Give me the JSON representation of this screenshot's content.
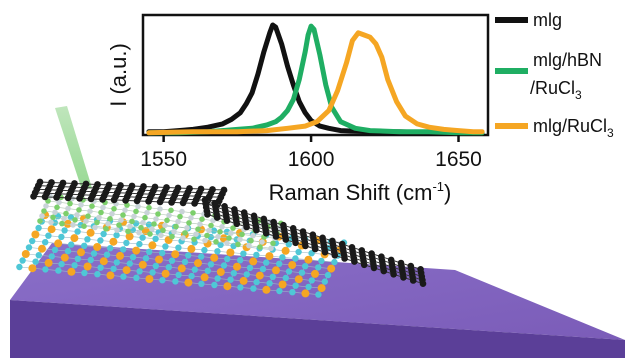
{
  "chart_data": {
    "type": "line",
    "title": "",
    "xlabel_main": "Raman Shift (cm",
    "xlabel_sup": "-1",
    "xlabel_end": ")",
    "ylabel": "I (a.u.)",
    "xlim": [
      1543,
      1660
    ],
    "ylim": [
      0,
      1.08
    ],
    "x_ticks": [
      1550,
      1600,
      1650
    ],
    "legend_position": "right",
    "series": [
      {
        "name_main": "mlg",
        "name_sub": "",
        "name_cont": "",
        "name_cont_sub": "",
        "color": "#111111",
        "x": [
          1545,
          1550,
          1555,
          1560,
          1565,
          1570,
          1573,
          1576,
          1578,
          1580,
          1582,
          1584,
          1586,
          1587,
          1588,
          1590,
          1592,
          1594,
          1596,
          1598,
          1600,
          1603,
          1606,
          1610,
          1620,
          1630,
          1640,
          1650,
          1658
        ],
        "y": [
          0.03,
          0.03,
          0.04,
          0.05,
          0.07,
          0.1,
          0.14,
          0.2,
          0.28,
          0.38,
          0.55,
          0.75,
          0.92,
          0.99,
          0.97,
          0.82,
          0.62,
          0.45,
          0.3,
          0.2,
          0.13,
          0.08,
          0.06,
          0.04,
          0.03,
          0.03,
          0.02,
          0.02,
          0.02
        ]
      },
      {
        "name_main": "mlg/hBN",
        "name_sub": "",
        "name_cont": "/RuCl",
        "name_cont_sub": "3",
        "color": "#1fae63",
        "x": [
          1545,
          1555,
          1565,
          1575,
          1580,
          1585,
          1588,
          1590,
          1592,
          1594,
          1596,
          1598,
          1599,
          1600,
          1601,
          1603,
          1605,
          1607,
          1610,
          1615,
          1620,
          1630,
          1640,
          1650,
          1658
        ],
        "y": [
          0.02,
          0.02,
          0.03,
          0.05,
          0.06,
          0.09,
          0.12,
          0.16,
          0.22,
          0.32,
          0.5,
          0.75,
          0.9,
          0.98,
          0.95,
          0.72,
          0.45,
          0.25,
          0.12,
          0.06,
          0.04,
          0.03,
          0.03,
          0.02,
          0.02
        ]
      },
      {
        "name_main": "mlg/RuCl",
        "name_sub": "3",
        "name_cont": "",
        "name_cont_sub": "",
        "color": "#f5a623",
        "x": [
          1545,
          1560,
          1575,
          1585,
          1592,
          1598,
          1602,
          1606,
          1609,
          1612,
          1614,
          1616,
          1618,
          1620,
          1622,
          1624,
          1626,
          1629,
          1632,
          1636,
          1640,
          1645,
          1650,
          1655,
          1658
        ],
        "y": [
          0.02,
          0.03,
          0.03,
          0.04,
          0.06,
          0.08,
          0.12,
          0.22,
          0.4,
          0.65,
          0.85,
          0.92,
          0.9,
          0.88,
          0.82,
          0.7,
          0.5,
          0.3,
          0.17,
          0.1,
          0.07,
          0.05,
          0.04,
          0.03,
          0.03
        ]
      }
    ]
  }
}
